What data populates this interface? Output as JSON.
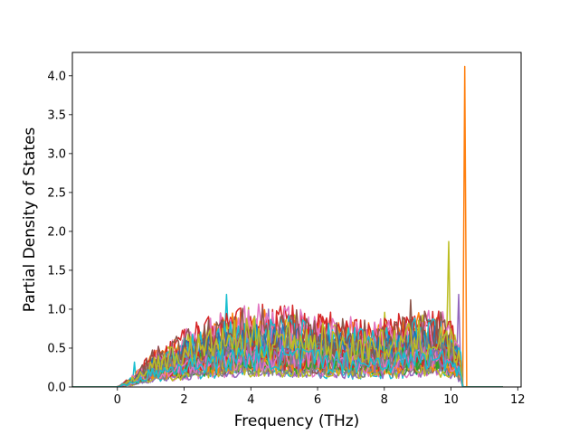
{
  "chart_data": {
    "type": "line",
    "title": "",
    "xlabel": "Frequency (THz)",
    "ylabel": "Partial Density of States",
    "xlim": [
      -1.35,
      12.1
    ],
    "ylim": [
      0.0,
      4.3
    ],
    "xticks": [
      0,
      2,
      4,
      6,
      8,
      10,
      12
    ],
    "yticks": [
      0.0,
      0.5,
      1.0,
      1.5,
      2.0,
      2.5,
      3.0,
      3.5,
      4.0
    ],
    "xtick_labels": [
      "0",
      "2",
      "4",
      "6",
      "8",
      "10",
      "12"
    ],
    "ytick_labels": [
      "0.0",
      "0.5",
      "1.0",
      "1.5",
      "2.0",
      "2.5",
      "3.0",
      "3.5",
      "4.0"
    ],
    "grid": false,
    "legend": "none",
    "x_range_of_curves": [
      -1.35,
      11.55
    ],
    "nonzero_band": [
      0.0,
      10.45
    ],
    "series_count": 40,
    "series_colors": [
      "#1f77b4",
      "#ff7f0e",
      "#2ca02c",
      "#d62728",
      "#9467bd",
      "#8c564b",
      "#e377c2",
      "#7f7f7f",
      "#bcbd22",
      "#17becf"
    ],
    "approx_envelope": {
      "x": [
        0,
        0.5,
        1.0,
        1.5,
        2.0,
        2.5,
        3.0,
        3.5,
        4.0,
        4.5,
        5.0,
        5.5,
        6.0,
        6.5,
        7.0,
        7.5,
        8.0,
        8.5,
        9.0,
        9.5,
        10.0,
        10.3
      ],
      "y": [
        0.0,
        0.1,
        0.28,
        0.35,
        0.45,
        0.5,
        0.55,
        0.6,
        0.62,
        0.63,
        0.62,
        0.6,
        0.58,
        0.55,
        0.53,
        0.52,
        0.52,
        0.55,
        0.6,
        0.6,
        0.55,
        0.3
      ]
    },
    "peaks": [
      {
        "x": 0.5,
        "y": 0.32,
        "color": "#17becf"
      },
      {
        "x": 2.4,
        "y": 0.74,
        "color": "#d62728"
      },
      {
        "x": 3.25,
        "y": 1.19,
        "color": "#17becf"
      },
      {
        "x": 3.9,
        "y": 1.02,
        "color": "#bcbd22"
      },
      {
        "x": 4.5,
        "y": 1.0,
        "color": "#9467bd"
      },
      {
        "x": 5.7,
        "y": 0.9,
        "color": "#e377c2"
      },
      {
        "x": 7.0,
        "y": 0.8,
        "color": "#ff7f0e"
      },
      {
        "x": 8.0,
        "y": 0.96,
        "color": "#bcbd22"
      },
      {
        "x": 8.8,
        "y": 1.12,
        "color": "#8c564b"
      },
      {
        "x": 9.95,
        "y": 1.87,
        "color": "#bcbd22"
      },
      {
        "x": 10.2,
        "y": 1.19,
        "color": "#9467bd"
      },
      {
        "x": 10.4,
        "y": 4.12,
        "color": "#ff7f0e"
      }
    ]
  }
}
